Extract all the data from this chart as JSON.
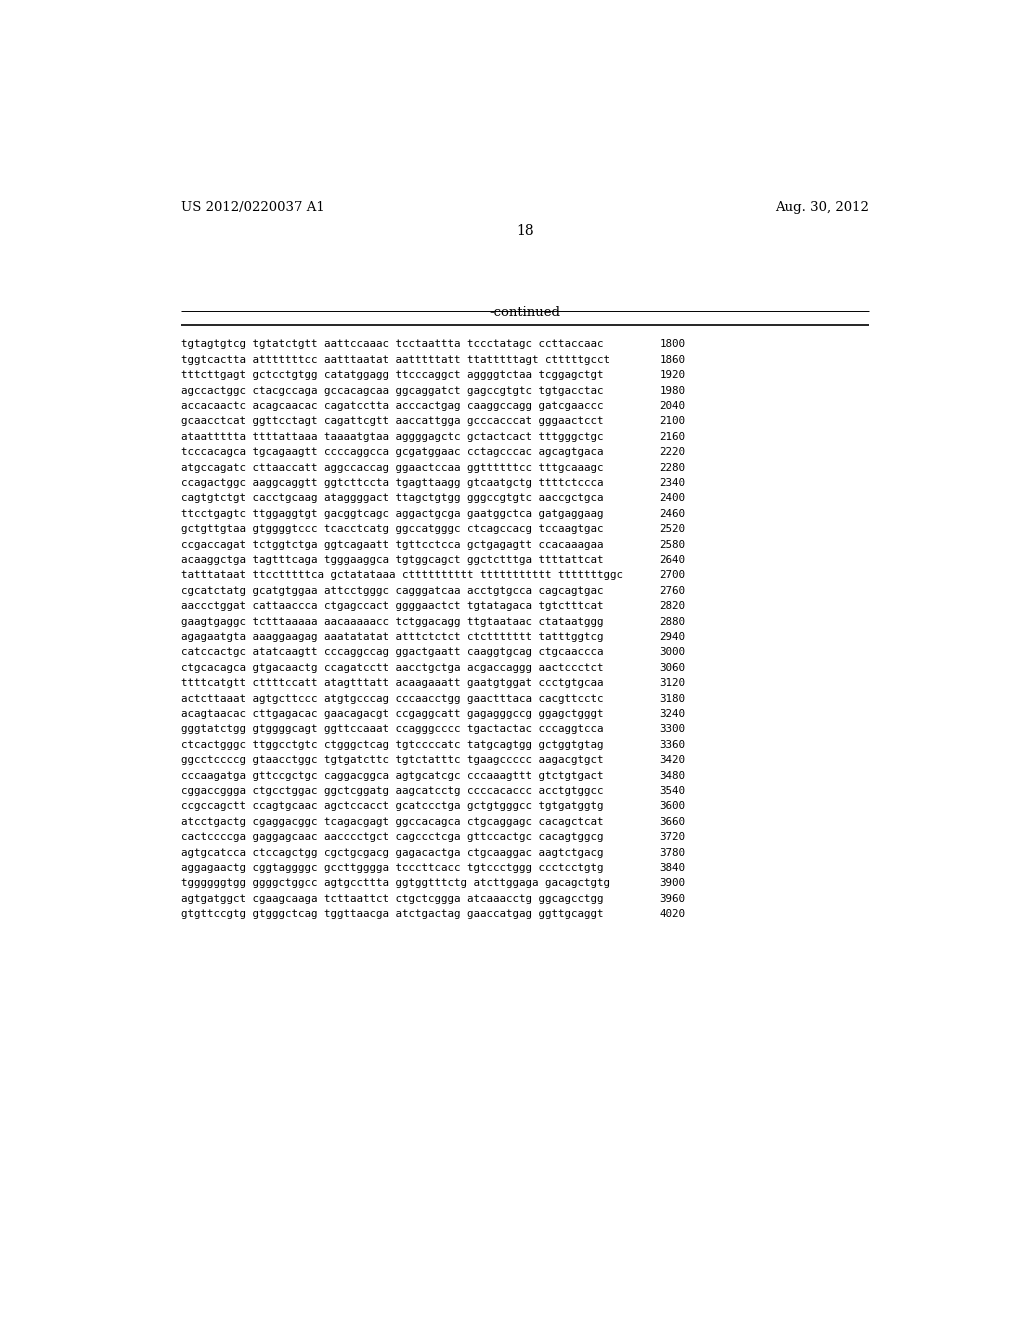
{
  "header_left": "US 2012/0220037 A1",
  "header_right": "Aug. 30, 2012",
  "page_number": "18",
  "continued_label": "-continued",
  "background_color": "#ffffff",
  "text_color": "#000000",
  "header_fontsize": 9.5,
  "page_num_fontsize": 10,
  "continued_fontsize": 9.5,
  "sequence_fontsize": 7.8,
  "sequence_lines": [
    [
      "tgtagtgtcg tgtatctgtt aattccaaac tcctaattta tccctatagc ccttaccaac",
      "1800"
    ],
    [
      "tggtcactta atttttttcc aatttaatat aatttttatt ttatttttagt ctttttgcct",
      "1860"
    ],
    [
      "tttcttgagt gctcctgtgg catatggagg ttcccaggct aggggtctaa tcggagctgt",
      "1920"
    ],
    [
      "agccactggc ctacgccaga gccacagcaa ggcaggatct gagccgtgtc tgtgacctac",
      "1980"
    ],
    [
      "accacaactc acagcaacac cagatcctta acccactgag caaggccagg gatcgaaccc",
      "2040"
    ],
    [
      "gcaacctcat ggttcctagt cagattcgtt aaccattgga gcccacccat gggaactcct",
      "2100"
    ],
    [
      "ataattttta ttttattaaa taaaatgtaa aggggagctc gctactcact tttgggctgc",
      "2160"
    ],
    [
      "tcccacagca tgcagaagtt ccccaggcca gcgatggaac cctagcccac agcagtgaca",
      "2220"
    ],
    [
      "atgccagatc cttaaccatt aggccaccag ggaactccaa ggttttttcc tttgcaaagc",
      "2280"
    ],
    [
      "ccagactggc aaggcaggtt ggtcttccta tgagttaagg gtcaatgctg ttttctccca",
      "2340"
    ],
    [
      "cagtgtctgt cacctgcaag ataggggact ttagctgtgg gggccgtgtc aaccgctgca",
      "2400"
    ],
    [
      "ttcctgagtc ttggaggtgt gacggtcagc aggactgcga gaatggctca gatgaggaag",
      "2460"
    ],
    [
      "gctgttgtaa gtggggtccc tcacctcatg ggccatgggc ctcagccacg tccaagtgac",
      "2520"
    ],
    [
      "ccgaccagat tctggtctga ggtcagaatt tgttcctcca gctgagagtt ccacaaagaa",
      "2580"
    ],
    [
      "acaaggctga tagtttcaga tgggaaggca tgtggcagct ggctctttga ttttattcat",
      "2640"
    ],
    [
      "tatttataat ttcctttttca gctatataaa ctttttttttt ttttttttttt tttttttggc",
      "2700"
    ],
    [
      "cgcatctatg gcatgtggaa attcctgggc cagggatcaa acctgtgcca cagcagtgac",
      "2760"
    ],
    [
      "aaccctggat cattaaccca ctgagccact ggggaactct tgtatagaca tgtctttcat",
      "2820"
    ],
    [
      "gaagtgaggc tctttaaaaa aacaaaaacc tctggacagg ttgtaataac ctataatggg",
      "2880"
    ],
    [
      "agagaatgta aaaggaagag aaatatatat atttctctct ctcttttttt tatttggtcg",
      "2940"
    ],
    [
      "catccactgc atatcaagtt cccaggccag ggactgaatt caaggtgcag ctgcaaccca",
      "3000"
    ],
    [
      "ctgcacagca gtgacaactg ccagatcctt aacctgctga acgaccaggg aactccctct",
      "3060"
    ],
    [
      "ttttcatgtt cttttccatt atagtttatt acaagaaatt gaatgtggat ccctgtgcaa",
      "3120"
    ],
    [
      "actcttaaat agtgcttccc atgtgcccag cccaacctgg gaactttaca cacgttcctc",
      "3180"
    ],
    [
      "acagtaacac cttgagacac gaacagacgt ccgaggcatt gagagggccg ggagctgggt",
      "3240"
    ],
    [
      "gggtatctgg gtggggcagt ggttccaaat ccagggcccc tgactactac cccaggtcca",
      "3300"
    ],
    [
      "ctcactgggc ttggcctgtc ctgggctcag tgtccccatc tatgcagtgg gctggtgtag",
      "3360"
    ],
    [
      "ggcctccccg gtaacctggc tgtgatcttc tgtctatttc tgaagccccc aagacgtgct",
      "3420"
    ],
    [
      "cccaagatga gttccgctgc caggacggca agtgcatcgc cccaaagttt gtctgtgact",
      "3480"
    ],
    [
      "cggaccggga ctgcctggac ggctcggatg aagcatcctg ccccacaccc acctgtggcc",
      "3540"
    ],
    [
      "ccgccagctt ccagtgcaac agctccacct gcatccctga gctgtgggcc tgtgatggtg",
      "3600"
    ],
    [
      "atcctgactg cgaggacggc tcagacgagt ggccacagca ctgcaggagc cacagctcat",
      "3660"
    ],
    [
      "cactccccga gaggagcaac aacccctgct cagccctcga gttccactgc cacagtggcg",
      "3720"
    ],
    [
      "agtgcatcca ctccagctgg cgctgcgacg gagacactga ctgcaaggac aagtctgacg",
      "3780"
    ],
    [
      "aggagaactg cggtaggggc gccttgggga tcccttcacc tgtccctggg ccctcctgtg",
      "3840"
    ],
    [
      "tggggggtgg ggggctggcc agtgccttta ggtggtttctg atcttggaga gacagctgtg",
      "3900"
    ],
    [
      "agtgatggct cgaagcaaga tcttaattct ctgctcggga atcaaacctg ggcagcctgg",
      "3960"
    ],
    [
      "gtgttccgtg gtgggctcag tggttaacga atctgactag gaaccatgag ggttgcaggt",
      "4020"
    ]
  ]
}
